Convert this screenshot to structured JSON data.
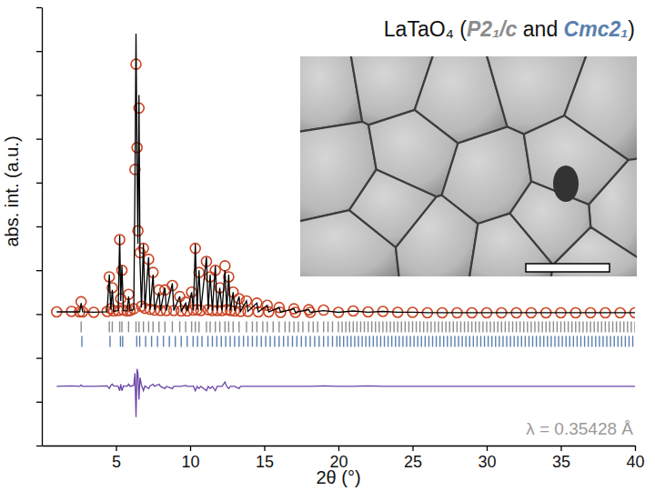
{
  "chart_data": {
    "type": "line",
    "title": "LaTaO₄ (P2₁/c and Cmc2₁)",
    "x_label": "2θ (°)",
    "y_label": "abs. int. (a.u.)",
    "annotations": [
      {
        "text": "λ = 0.35428 Å"
      }
    ],
    "xlim": [
      0,
      40
    ],
    "xticks": [
      5,
      10,
      15,
      20,
      25,
      30,
      35,
      40
    ],
    "ylim": [
      -3,
      7
    ],
    "yticks": [
      -3,
      -2,
      -1,
      0,
      1,
      2,
      3,
      4,
      5,
      6,
      7
    ],
    "tick_labels": "x",
    "x": [
      1.0,
      2.0,
      2.55,
      2.65,
      2.75,
      3.5,
      4.4,
      4.55,
      4.65,
      4.75,
      4.85,
      5.15,
      5.25,
      5.32,
      5.4,
      5.5,
      5.75,
      5.85,
      5.95,
      6.2,
      6.28,
      6.35,
      6.42,
      6.48,
      6.55,
      6.62,
      6.72,
      6.85,
      6.95,
      7.2,
      7.3,
      7.5,
      7.6,
      7.9,
      8.0,
      8.3,
      8.4,
      8.8,
      8.9,
      9.3,
      9.4,
      9.7,
      9.8,
      10.1,
      10.22,
      10.35,
      10.47,
      10.6,
      10.72,
      11.1,
      11.22,
      11.35,
      11.5,
      11.7,
      11.82,
      12.0,
      12.15,
      12.35,
      12.47,
      12.6,
      12.72,
      12.9,
      13.0,
      13.3,
      13.4,
      13.8,
      13.9,
      14.5,
      14.6,
      15.2,
      15.3,
      16.0,
      16.1,
      17.0,
      17.1,
      18.0,
      18.1,
      19.0,
      20,
      21,
      22,
      23,
      24,
      25,
      26,
      27,
      28,
      29,
      30,
      31,
      32,
      33,
      34,
      35,
      36,
      37,
      38,
      39,
      40
    ],
    "series": [
      {
        "type": "scatter",
        "marker": "circle",
        "color": "#cc4422",
        "values": [
          0.05,
          0.06,
          0.05,
          0.28,
          0.05,
          0.04,
          0.06,
          0.85,
          0.12,
          0.6,
          0.07,
          0.08,
          1.7,
          0.35,
          1.0,
          0.09,
          0.07,
          0.45,
          0.08,
          0.12,
          3.3,
          5.7,
          3.8,
          1.9,
          4.7,
          1.4,
          0.18,
          1.5,
          0.13,
          1.25,
          0.11,
          0.95,
          0.09,
          0.55,
          0.08,
          0.55,
          0.08,
          0.65,
          0.08,
          0.4,
          0.07,
          0.27,
          0.07,
          0.5,
          0.09,
          1.5,
          0.1,
          0.95,
          0.08,
          1.2,
          0.1,
          0.85,
          0.08,
          1.0,
          0.08,
          0.6,
          0.08,
          1.1,
          0.1,
          0.85,
          0.08,
          0.5,
          0.07,
          0.35,
          0.06,
          0.3,
          0.06,
          0.25,
          0.05,
          0.2,
          0.05,
          0.15,
          0.04,
          0.12,
          0.04,
          0.1,
          0.04,
          0.09,
          0.04,
          0.07,
          0.05,
          0.06,
          0.04,
          0.04,
          0.03,
          0.03,
          0.03,
          0.03,
          0.03,
          0.03,
          0.03,
          0.03,
          0.03,
          0.03,
          0.03,
          0.03,
          0.03,
          0.03,
          0.03
        ]
      },
      {
        "type": "line",
        "line_style": "solid",
        "color": "#000000",
        "values": [
          0.05,
          0.05,
          0.05,
          0.25,
          0.05,
          0.04,
          0.05,
          0.9,
          0.1,
          0.55,
          0.06,
          0.08,
          1.8,
          0.3,
          1.1,
          0.08,
          0.07,
          0.4,
          0.08,
          0.1,
          3.0,
          6.4,
          3.4,
          1.6,
          5.0,
          1.2,
          0.15,
          1.6,
          0.12,
          1.3,
          0.1,
          0.9,
          0.09,
          0.5,
          0.08,
          0.6,
          0.08,
          0.7,
          0.08,
          0.4,
          0.07,
          0.25,
          0.07,
          0.5,
          0.08,
          1.6,
          0.1,
          1.0,
          0.08,
          1.3,
          0.1,
          0.9,
          0.08,
          1.1,
          0.08,
          0.6,
          0.08,
          1.0,
          0.1,
          0.9,
          0.08,
          0.5,
          0.07,
          0.4,
          0.06,
          0.3,
          0.06,
          0.25,
          0.05,
          0.2,
          0.05,
          0.15,
          0.04,
          0.12,
          0.04,
          0.1,
          0.04,
          0.08,
          0.04,
          0.07,
          0.04,
          0.06,
          0.04,
          0.04,
          0.03,
          0.03,
          0.03,
          0.03,
          0.03,
          0.03,
          0.03,
          0.03,
          0.03,
          0.03,
          0.03,
          0.03,
          0.03,
          0.03,
          0.03
        ]
      },
      {
        "type": "line",
        "line_style": "solid",
        "color": "#6a45a8",
        "values": [
          -1.65,
          -1.64,
          -1.65,
          -1.62,
          -1.65,
          -1.65,
          -1.64,
          -1.7,
          -1.63,
          -1.6,
          -1.64,
          -1.65,
          -1.75,
          -1.6,
          -1.75,
          -1.64,
          -1.65,
          -1.6,
          -1.65,
          -1.63,
          -1.35,
          -2.35,
          -1.25,
          -1.35,
          -1.95,
          -1.45,
          -1.62,
          -1.75,
          -1.64,
          -1.7,
          -1.64,
          -1.6,
          -1.65,
          -1.6,
          -1.65,
          -1.7,
          -1.65,
          -1.7,
          -1.65,
          -1.65,
          -1.65,
          -1.63,
          -1.65,
          -1.65,
          -1.64,
          -1.75,
          -1.65,
          -1.7,
          -1.65,
          -1.75,
          -1.65,
          -1.7,
          -1.65,
          -1.75,
          -1.65,
          -1.65,
          -1.65,
          -1.55,
          -1.65,
          -1.7,
          -1.65,
          -1.65,
          -1.65,
          -1.7,
          -1.65,
          -1.65,
          -1.65,
          -1.65,
          -1.65,
          -1.65,
          -1.65,
          -1.65,
          -1.65,
          -1.65,
          -1.65,
          -1.65,
          -1.65,
          -1.64,
          -1.65,
          -1.65,
          -1.64,
          -1.65,
          -1.65,
          -1.65,
          -1.65,
          -1.65,
          -1.65,
          -1.65,
          -1.65,
          -1.65,
          -1.65,
          -1.65,
          -1.65,
          -1.65,
          -1.65,
          -1.65,
          -1.65,
          -1.65,
          -1.65
        ]
      }
    ],
    "reflections": [
      {
        "name": "P2₁/c",
        "color": "#8c8c8c",
        "marker": "tick",
        "x": [
          2.65,
          4.55,
          4.75,
          5.25,
          5.4,
          5.85,
          6.35,
          6.55,
          6.85,
          7.2,
          7.5,
          7.9,
          8.3,
          8.8,
          9.3,
          9.7,
          10.1,
          10.35,
          10.6,
          11.1,
          11.35,
          11.7,
          12.0,
          12.35,
          12.6,
          12.9,
          13.3,
          13.8,
          14.2,
          14.5,
          14.9,
          15.2,
          15.6,
          16.0,
          16.4,
          16.7,
          17.0,
          17.3,
          17.6,
          18.0,
          18.3,
          18.6,
          19.0,
          19.3,
          19.6,
          20,
          20.25,
          20.5,
          20.75,
          21,
          21.25,
          21.5,
          21.75,
          22,
          22.25,
          22.5,
          22.75,
          23,
          23.25,
          23.5,
          23.75,
          24,
          24.25,
          24.5,
          24.75,
          25,
          25.25,
          25.5,
          25.75,
          26,
          26.25,
          26.5,
          26.75,
          27,
          27.25,
          27.5,
          27.75,
          28,
          28.25,
          28.5,
          28.75,
          29,
          29.25,
          29.5,
          29.75,
          30,
          30.25,
          30.5,
          30.75,
          31,
          31.25,
          31.5,
          31.75,
          32,
          32.25,
          32.5,
          32.75,
          33,
          33.25,
          33.5,
          33.75,
          34,
          34.25,
          34.5,
          34.75,
          35,
          35.25,
          35.5,
          35.75,
          36,
          36.25,
          36.5,
          36.75,
          37,
          37.25,
          37.5,
          37.75,
          38,
          38.25,
          38.5,
          38.75,
          39,
          39.25,
          39.5,
          39.75,
          40
        ]
      },
      {
        "name": "Cmc2₁",
        "color": "#5a7fae",
        "marker": "tick",
        "x": [
          2.7,
          4.6,
          5.3,
          5.45,
          6.4,
          6.6,
          7.0,
          7.4,
          7.8,
          8.2,
          8.6,
          9.0,
          9.4,
          9.8,
          10.2,
          10.5,
          10.8,
          11.2,
          11.5,
          11.8,
          12.1,
          12.4,
          12.7,
          13.0,
          13.3,
          13.6,
          13.9,
          14.2,
          14.5,
          14.8,
          15.1,
          15.4,
          15.7,
          16.0,
          16.3,
          16.6,
          16.9,
          17.2,
          17.5,
          17.8,
          18.1,
          18.4,
          18.7,
          19.0,
          19.3,
          19.6,
          19.9,
          20.1,
          20.35,
          20.6,
          20.85,
          21.1,
          21.35,
          21.6,
          21.85,
          22.1,
          22.35,
          22.6,
          22.85,
          23.1,
          23.35,
          23.6,
          23.85,
          24.1,
          24.35,
          24.6,
          24.85,
          25.1,
          25.35,
          25.6,
          25.85,
          26.1,
          26.35,
          26.6,
          26.85,
          27.1,
          27.35,
          27.6,
          27.85,
          28.1,
          28.35,
          28.6,
          28.85,
          29.1,
          29.35,
          29.6,
          29.85,
          30.1,
          30.35,
          30.6,
          30.85,
          31.1,
          31.35,
          31.6,
          31.85,
          32.1,
          32.35,
          32.6,
          32.85,
          33.1,
          33.35,
          33.6,
          33.85,
          34.1,
          34.35,
          34.6,
          34.85,
          35.1,
          35.35,
          35.6,
          35.85,
          36.1,
          36.35,
          36.6,
          36.85,
          37.1,
          37.35,
          37.6,
          37.85,
          38.1,
          38.35,
          38.6,
          38.85,
          39.1,
          39.35,
          39.6,
          39.85
        ]
      }
    ]
  }
}
